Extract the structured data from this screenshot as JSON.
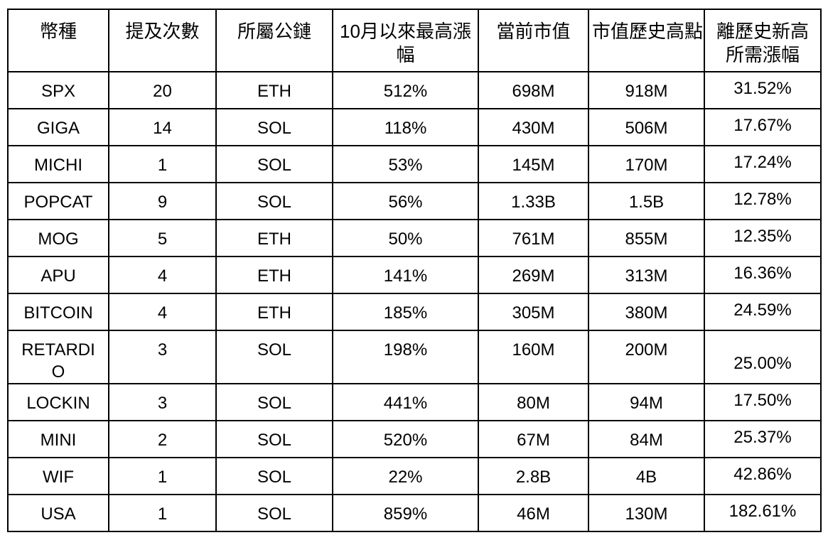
{
  "table": {
    "columns": [
      {
        "id": "coin",
        "label": "幣種"
      },
      {
        "id": "mention-count",
        "label": "提及次數"
      },
      {
        "id": "chain",
        "label": "所屬公鏈"
      },
      {
        "id": "max-gain-since-oct",
        "label": "10月以來最高漲\n幅"
      },
      {
        "id": "current-mcap",
        "label": "當前市值"
      },
      {
        "id": "ath-mcap",
        "label": "市值歷史高點"
      },
      {
        "id": "gain-needed-to-ath",
        "label": "離歷史新高\n所需漲幅"
      }
    ],
    "rows": [
      {
        "cells": [
          "SPX",
          "20",
          "ETH",
          "512%",
          "698M",
          "918M",
          "31.52%"
        ]
      },
      {
        "cells": [
          "GIGA",
          "14",
          "SOL",
          "118%",
          "430M",
          "506M",
          "17.67%"
        ]
      },
      {
        "cells": [
          "MICHI",
          "1",
          "SOL",
          "53%",
          "145M",
          "170M",
          "17.24%"
        ]
      },
      {
        "cells": [
          "POPCAT",
          "9",
          "SOL",
          "56%",
          "1.33B",
          "1.5B",
          "12.78%"
        ]
      },
      {
        "cells": [
          "MOG",
          "5",
          "ETH",
          "50%",
          "761M",
          "855M",
          "12.35%"
        ]
      },
      {
        "cells": [
          "APU",
          "4",
          "ETH",
          "141%",
          "269M",
          "313M",
          "16.36%"
        ]
      },
      {
        "cells": [
          "BITCOIN",
          "4",
          "ETH",
          "185%",
          "305M",
          "380M",
          "24.59%"
        ]
      },
      {
        "cells": [
          "RETARDIO",
          "3",
          "SOL",
          "198%",
          "160M",
          "200M",
          "25.00%"
        ]
      },
      {
        "cells": [
          "LOCKIN",
          "3",
          "SOL",
          "441%",
          "80M",
          "94M",
          "17.50%"
        ]
      },
      {
        "cells": [
          "MINI",
          "2",
          "SOL",
          "520%",
          "67M",
          "84M",
          "25.37%"
        ]
      },
      {
        "cells": [
          "WIF",
          "1",
          "SOL",
          "22%",
          "2.8B",
          "4B",
          "42.86%"
        ]
      },
      {
        "cells": [
          "USA",
          "1",
          "SOL",
          "859%",
          "46M",
          "130M",
          "182.61%"
        ]
      }
    ]
  },
  "colors": {
    "background": "#ffffff",
    "border": "#000000",
    "text": "#000000"
  }
}
